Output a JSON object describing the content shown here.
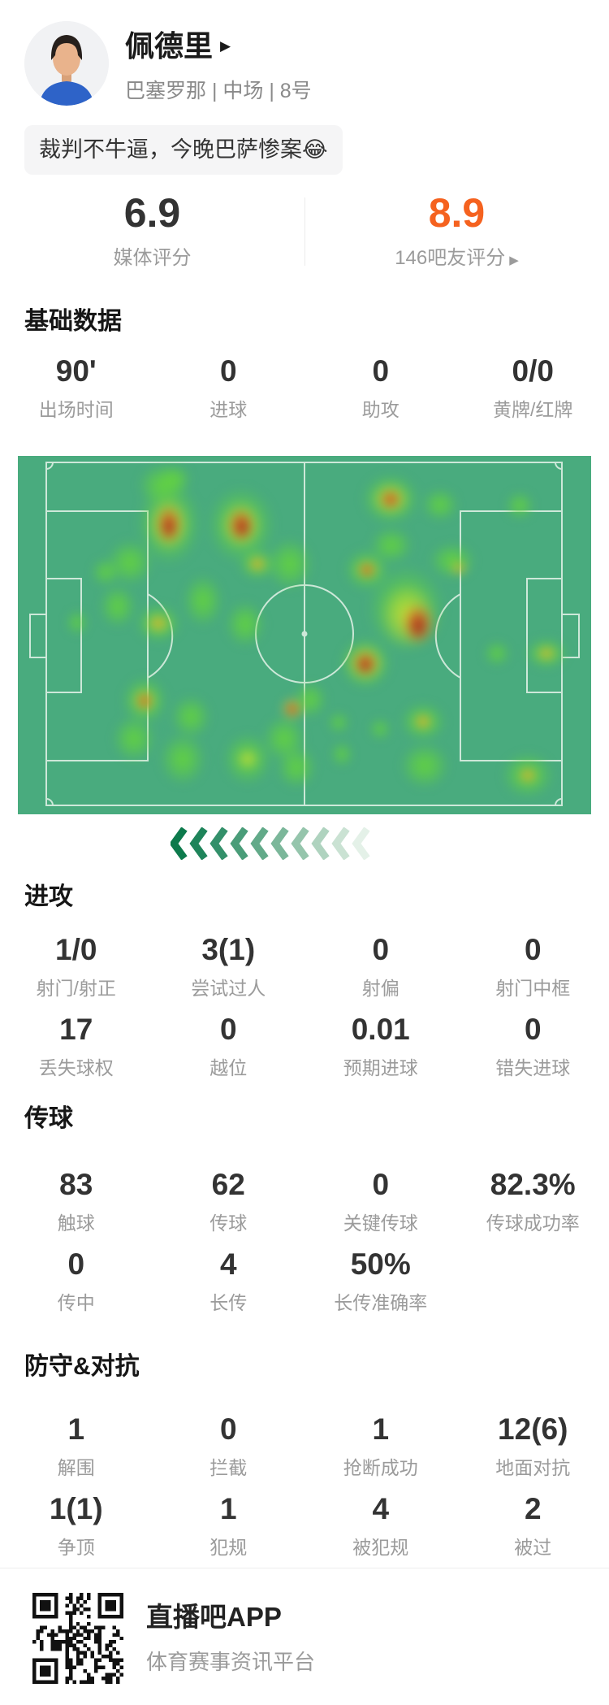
{
  "player": {
    "name": "佩德里",
    "expand_icon": "▶",
    "meta": "巴塞罗那 | 中场 | 8号",
    "quote": "裁判不牛逼，今晚巴萨惨案😂"
  },
  "ratings": {
    "media": {
      "value": "6.9",
      "label": "媒体评分"
    },
    "fans": {
      "value": "8.9",
      "label": "146吧友评分",
      "arrow_icon": "▶"
    }
  },
  "sections": {
    "basic": {
      "title": "基础数据",
      "rows": [
        [
          {
            "v": "90'",
            "l": "出场时间"
          },
          {
            "v": "0",
            "l": "进球"
          },
          {
            "v": "0",
            "l": "助攻"
          },
          {
            "v": "0/0",
            "l": "黄牌/红牌"
          }
        ]
      ]
    },
    "attack": {
      "title": "进攻",
      "rows": [
        [
          {
            "v": "1/0",
            "l": "射门/射正"
          },
          {
            "v": "3(1)",
            "l": "尝试过人"
          },
          {
            "v": "0",
            "l": "射偏"
          },
          {
            "v": "0",
            "l": "射门中框"
          }
        ],
        [
          {
            "v": "17",
            "l": "丢失球权"
          },
          {
            "v": "0",
            "l": "越位"
          },
          {
            "v": "0.01",
            "l": "预期进球"
          },
          {
            "v": "0",
            "l": "错失进球"
          }
        ]
      ]
    },
    "passing": {
      "title": "传球",
      "rows": [
        [
          {
            "v": "83",
            "l": "触球"
          },
          {
            "v": "62",
            "l": "传球"
          },
          {
            "v": "0",
            "l": "关键传球"
          },
          {
            "v": "82.3%",
            "l": "传球成功率"
          }
        ],
        [
          {
            "v": "0",
            "l": "传中"
          },
          {
            "v": "4",
            "l": "长传"
          },
          {
            "v": "50%",
            "l": "长传准确率"
          }
        ]
      ]
    },
    "defense": {
      "title": "防守&对抗",
      "rows": [
        [
          {
            "v": "1",
            "l": "解围"
          },
          {
            "v": "0",
            "l": "拦截"
          },
          {
            "v": "1",
            "l": "抢断成功"
          },
          {
            "v": "12(6)",
            "l": "地面对抗"
          }
        ],
        [
          {
            "v": "1(1)",
            "l": "争顶"
          },
          {
            "v": "1",
            "l": "犯规"
          },
          {
            "v": "4",
            "l": "被犯规"
          },
          {
            "v": "2",
            "l": "被过"
          }
        ]
      ]
    }
  },
  "heatmap": {
    "field_color": "#49ab7e",
    "line_color": "#dcefe3",
    "palette": {
      "g": "101,214,58",
      "y": "203,219,56",
      "o": "224,146,40",
      "r": "199,62,34",
      "rr": "156,42,26"
    },
    "blob_groups": [
      {
        "level": "g",
        "blobs": [
          [
            186,
            83,
            40,
            52
          ],
          [
            178,
            36,
            30,
            26
          ],
          [
            275,
            85,
            42,
            48
          ],
          [
            295,
            133,
            24,
            20
          ],
          [
            138,
            131,
            28,
            28
          ],
          [
            123,
            185,
            22,
            26
          ],
          [
            173,
            206,
            28,
            24
          ],
          [
            156,
            301,
            28,
            30
          ],
          [
            143,
            348,
            26,
            28
          ],
          [
            203,
            373,
            28,
            32
          ],
          [
            228,
            178,
            24,
            32
          ],
          [
            213,
            321,
            24,
            26
          ],
          [
            283,
            373,
            30,
            32
          ],
          [
            335,
            133,
            28,
            32
          ],
          [
            328,
            348,
            26,
            28
          ],
          [
            343,
            383,
            24,
            26
          ],
          [
            395,
            328,
            13,
            13
          ],
          [
            446,
            336,
            13,
            13
          ],
          [
            399,
            367,
            13,
            15
          ],
          [
            459,
            53,
            36,
            32
          ],
          [
            618,
            61,
            17,
            17
          ],
          [
            430,
            140,
            28,
            26
          ],
          [
            478,
            188,
            48,
            54
          ],
          [
            428,
            255,
            32,
            32
          ],
          [
            535,
            129,
            28,
            22
          ],
          [
            590,
            243,
            16,
            15
          ],
          [
            651,
            243,
            26,
            19
          ],
          [
            628,
            393,
            32,
            28
          ],
          [
            499,
            327,
            28,
            24
          ],
          [
            501,
            381,
            30,
            28
          ],
          [
            108,
            143,
            17,
            17
          ],
          [
            193,
            28,
            20,
            17
          ],
          [
            460,
            110,
            26,
            22
          ],
          [
            520,
            60,
            22,
            20
          ],
          [
            360,
            300,
            20,
            22
          ],
          [
            280,
            207,
            24,
            28
          ],
          [
            73,
            205,
            13,
            15
          ]
        ]
      },
      {
        "level": "y",
        "blobs": [
          [
            186,
            84,
            26,
            34
          ],
          [
            275,
            85,
            26,
            30
          ],
          [
            459,
            53,
            24,
            21
          ],
          [
            480,
            196,
            34,
            40
          ],
          [
            428,
            255,
            24,
            24
          ],
          [
            173,
            206,
            16,
            13
          ],
          [
            156,
            301,
            16,
            16
          ],
          [
            283,
            373,
            14,
            13
          ],
          [
            651,
            243,
            14,
            10
          ],
          [
            499,
            327,
            13,
            11
          ],
          [
            628,
            393,
            13,
            11
          ],
          [
            295,
            133,
            13,
            11
          ],
          [
            430,
            140,
            16,
            13
          ],
          [
            338,
            311,
            15,
            15
          ],
          [
            543,
            138,
            11,
            9
          ]
        ]
      },
      {
        "level": "o",
        "blobs": [
          [
            186,
            84,
            18,
            26
          ],
          [
            275,
            85,
            18,
            22
          ],
          [
            459,
            53,
            15,
            14
          ],
          [
            493,
            206,
            22,
            28
          ],
          [
            428,
            255,
            17,
            17
          ],
          [
            173,
            206,
            9,
            8
          ],
          [
            156,
            301,
            11,
            12
          ],
          [
            338,
            311,
            11,
            11
          ],
          [
            295,
            133,
            9,
            8
          ],
          [
            430,
            140,
            11,
            10
          ],
          [
            499,
            327,
            9,
            8
          ],
          [
            628,
            393,
            9,
            8
          ],
          [
            543,
            138,
            7,
            6
          ],
          [
            651,
            243,
            9,
            6
          ]
        ]
      },
      {
        "level": "r",
        "blobs": [
          [
            186,
            85,
            13,
            21
          ],
          [
            275,
            86,
            14,
            19
          ],
          [
            459,
            54,
            11,
            10
          ],
          [
            493,
            207,
            16,
            22
          ],
          [
            428,
            256,
            13,
            14
          ],
          [
            338,
            312,
            8,
            8
          ],
          [
            156,
            302,
            7,
            8
          ],
          [
            430,
            141,
            8,
            7
          ]
        ]
      },
      {
        "level": "rr",
        "blobs": [
          [
            186,
            88,
            8,
            13
          ],
          [
            277,
            88,
            9,
            12
          ],
          [
            493,
            210,
            10,
            15
          ],
          [
            428,
            258,
            8,
            9
          ]
        ]
      }
    ]
  },
  "arrows": {
    "direction": "left",
    "colors": [
      "#0d7a4c",
      "#1e845a",
      "#33906a",
      "#4a9d79",
      "#62aa89",
      "#7bb79a",
      "#95c5ac",
      "#afd3bf",
      "#cae2d3",
      "#e4f1e8"
    ]
  },
  "footer": {
    "app": "直播吧APP",
    "tagline": "体育赛事资讯平台"
  }
}
